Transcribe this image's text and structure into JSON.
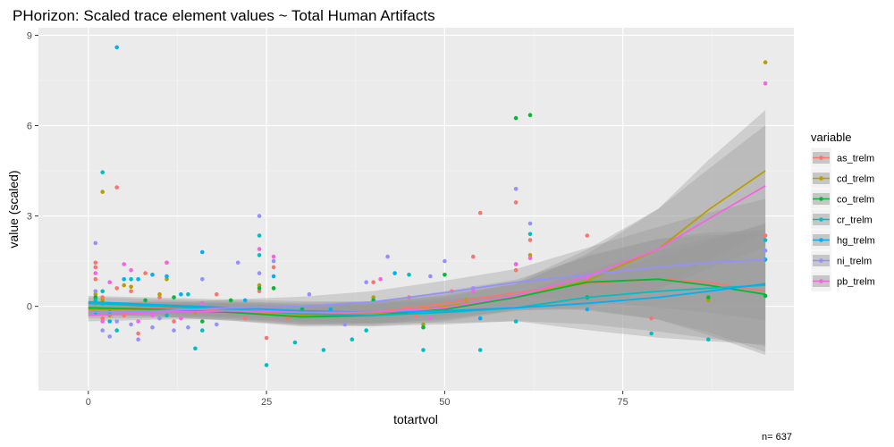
{
  "chart_data": {
    "type": "scatter",
    "title": "PHorizon: Scaled trace element values ~ Total Human Artifacts",
    "xlabel": "totartvol",
    "ylabel": "value (scaled)",
    "xlim": [
      -7,
      99
    ],
    "ylim": [
      -2.8,
      9.25
    ],
    "x_ticks": [
      0,
      25,
      50,
      75
    ],
    "y_ticks": [
      0,
      3,
      6,
      9
    ],
    "grid": true,
    "legend_title": "variable",
    "legend_position": "right",
    "note": "n= 637",
    "series": [
      {
        "name": "as_trelm",
        "color": "#F8766D",
        "points": [
          [
            1,
            1.45
          ],
          [
            1,
            1.3
          ],
          [
            1,
            0.9
          ],
          [
            1,
            0.2
          ],
          [
            2,
            0.3
          ],
          [
            2,
            -0.4
          ],
          [
            3,
            -0.2
          ],
          [
            4,
            3.95
          ],
          [
            4,
            0.6
          ],
          [
            5,
            -0.3
          ],
          [
            6,
            0.5
          ],
          [
            7,
            -0.9
          ],
          [
            8,
            1.1
          ],
          [
            10,
            0.3
          ],
          [
            11,
            1.45
          ],
          [
            12,
            -0.5
          ],
          [
            15,
            -0.2
          ],
          [
            18,
            0.4
          ],
          [
            22,
            -0.4
          ],
          [
            24,
            0.5
          ],
          [
            25,
            -1.05
          ],
          [
            26,
            1.3
          ],
          [
            28,
            -0.4
          ],
          [
            35,
            -0.2
          ],
          [
            40,
            0.8
          ],
          [
            45,
            0.3
          ],
          [
            46,
            -0.3
          ],
          [
            51,
            0.5
          ],
          [
            54,
            1.65
          ],
          [
            55,
            3.1
          ],
          [
            60,
            3.45
          ],
          [
            60,
            1.2
          ],
          [
            62,
            2.2
          ],
          [
            70,
            2.35
          ],
          [
            79,
            -0.4
          ],
          [
            95,
            2.35
          ]
        ],
        "curve": [
          [
            0,
            -0.1
          ],
          [
            10,
            -0.05
          ],
          [
            20,
            -0.15
          ],
          [
            30,
            -0.3
          ],
          [
            40,
            -0.2
          ],
          [
            50,
            0.1
          ],
          [
            60,
            0.45
          ],
          [
            70,
            0.75
          ],
          [
            80,
            0.9
          ],
          [
            87,
            0.8
          ],
          [
            95,
            0.5
          ]
        ]
      },
      {
        "name": "cd_trelm",
        "color": "#B79F00",
        "points": [
          [
            1,
            0.4
          ],
          [
            1,
            0.1
          ],
          [
            2,
            3.8
          ],
          [
            2,
            0.2
          ],
          [
            3,
            -0.3
          ],
          [
            5,
            0.7
          ],
          [
            6,
            0.65
          ],
          [
            10,
            0.4
          ],
          [
            11,
            0.9
          ],
          [
            15,
            -0.2
          ],
          [
            24,
            0.7
          ],
          [
            26,
            0.6
          ],
          [
            35,
            -0.3
          ],
          [
            40,
            0.3
          ],
          [
            47,
            -0.6
          ],
          [
            53,
            0.2
          ],
          [
            60,
            1.4
          ],
          [
            62,
            1.7
          ],
          [
            70,
            0.8
          ],
          [
            87,
            0.2
          ],
          [
            95,
            8.1
          ]
        ],
        "curve": [
          [
            0,
            -0.1
          ],
          [
            10,
            -0.1
          ],
          [
            20,
            -0.2
          ],
          [
            30,
            -0.3
          ],
          [
            40,
            -0.25
          ],
          [
            50,
            0.0
          ],
          [
            60,
            0.3
          ],
          [
            70,
            0.85
          ],
          [
            80,
            1.9
          ],
          [
            87,
            3.2
          ],
          [
            95,
            4.5
          ]
        ]
      },
      {
        "name": "co_trelm",
        "color": "#00BA38",
        "points": [
          [
            1,
            0.3
          ],
          [
            2,
            0.1
          ],
          [
            3,
            -0.2
          ],
          [
            8,
            0.2
          ],
          [
            12,
            0.3
          ],
          [
            16,
            -0.5
          ],
          [
            20,
            0.2
          ],
          [
            24,
            0.6
          ],
          [
            26,
            0.6
          ],
          [
            30,
            -0.1
          ],
          [
            40,
            0.2
          ],
          [
            47,
            -0.7
          ],
          [
            50,
            1.05
          ],
          [
            60,
            6.25
          ],
          [
            62,
            6.35
          ],
          [
            70,
            0.3
          ],
          [
            87,
            0.3
          ],
          [
            95,
            0.35
          ]
        ],
        "curve": [
          [
            0,
            -0.05
          ],
          [
            10,
            -0.1
          ],
          [
            20,
            -0.2
          ],
          [
            30,
            -0.35
          ],
          [
            40,
            -0.3
          ],
          [
            50,
            -0.1
          ],
          [
            60,
            0.3
          ],
          [
            70,
            0.8
          ],
          [
            80,
            0.9
          ],
          [
            87,
            0.7
          ],
          [
            95,
            0.4
          ]
        ]
      },
      {
        "name": "cr_trelm",
        "color": "#00BFC4",
        "points": [
          [
            1,
            0.2
          ],
          [
            2,
            4.45
          ],
          [
            2,
            0.5
          ],
          [
            3,
            -0.2
          ],
          [
            4,
            -0.8
          ],
          [
            6,
            0.9
          ],
          [
            11,
            -0.3
          ],
          [
            14,
            0.4
          ],
          [
            15,
            -1.4
          ],
          [
            16,
            -0.8
          ],
          [
            24,
            2.35
          ],
          [
            24,
            1.7
          ],
          [
            25,
            -1.95
          ],
          [
            29,
            -1.2
          ],
          [
            33,
            -1.45
          ],
          [
            37,
            -1.1
          ],
          [
            39,
            -0.8
          ],
          [
            45,
            1.05
          ],
          [
            47,
            -1.45
          ],
          [
            55,
            -1.45
          ],
          [
            60,
            -0.5
          ],
          [
            62,
            2.4
          ],
          [
            79,
            -0.9
          ],
          [
            87,
            -1.1
          ],
          [
            95,
            2.2
          ]
        ],
        "curve": [
          [
            0,
            0.1
          ],
          [
            10,
            0.0
          ],
          [
            20,
            -0.1
          ],
          [
            30,
            -0.25
          ],
          [
            40,
            -0.3
          ],
          [
            50,
            -0.2
          ],
          [
            60,
            -0.05
          ],
          [
            70,
            0.3
          ],
          [
            80,
            0.5
          ],
          [
            87,
            0.6
          ],
          [
            95,
            0.7
          ]
        ]
      },
      {
        "name": "hg_trelm",
        "color": "#00B0F6",
        "points": [
          [
            1,
            -0.2
          ],
          [
            3,
            -0.5
          ],
          [
            4,
            8.6
          ],
          [
            5,
            0.9
          ],
          [
            7,
            0.9
          ],
          [
            9,
            1.05
          ],
          [
            11,
            1.0
          ],
          [
            13,
            0.4
          ],
          [
            16,
            1.8
          ],
          [
            22,
            0.2
          ],
          [
            26,
            1.0
          ],
          [
            34,
            -0.1
          ],
          [
            43,
            1.1
          ],
          [
            55,
            -0.4
          ],
          [
            70,
            -0.1
          ],
          [
            95,
            1.55
          ]
        ],
        "curve": [
          [
            0,
            0.15
          ],
          [
            10,
            0.05
          ],
          [
            20,
            -0.05
          ],
          [
            30,
            -0.15
          ],
          [
            40,
            -0.2
          ],
          [
            50,
            -0.15
          ],
          [
            60,
            -0.05
          ],
          [
            70,
            0.1
          ],
          [
            80,
            0.3
          ],
          [
            87,
            0.5
          ],
          [
            95,
            0.75
          ]
        ]
      },
      {
        "name": "ni_trelm",
        "color": "#9590FF",
        "points": [
          [
            1,
            2.1
          ],
          [
            1,
            0.5
          ],
          [
            2,
            -0.8
          ],
          [
            3,
            -1.0
          ],
          [
            4,
            -0.5
          ],
          [
            6,
            -0.6
          ],
          [
            7,
            -1.1
          ],
          [
            9,
            -0.7
          ],
          [
            10,
            -0.4
          ],
          [
            12,
            -0.8
          ],
          [
            14,
            -0.7
          ],
          [
            16,
            0.9
          ],
          [
            18,
            -0.6
          ],
          [
            21,
            1.45
          ],
          [
            24,
            3.0
          ],
          [
            24,
            1.1
          ],
          [
            26,
            1.5
          ],
          [
            31,
            0.4
          ],
          [
            36,
            -0.6
          ],
          [
            39,
            0.8
          ],
          [
            42,
            1.65
          ],
          [
            48,
            1.0
          ],
          [
            50,
            1.5
          ],
          [
            54,
            0.6
          ],
          [
            60,
            3.9
          ],
          [
            62,
            2.75
          ],
          [
            70,
            1.0
          ],
          [
            95,
            1.85
          ]
        ],
        "curve": [
          [
            0,
            -0.2
          ],
          [
            10,
            -0.15
          ],
          [
            20,
            -0.05
          ],
          [
            30,
            0.0
          ],
          [
            40,
            0.15
          ],
          [
            50,
            0.45
          ],
          [
            60,
            0.8
          ],
          [
            70,
            1.05
          ],
          [
            80,
            1.3
          ],
          [
            87,
            1.45
          ],
          [
            95,
            1.55
          ]
        ]
      },
      {
        "name": "pb_trelm",
        "color": "#F564E3",
        "points": [
          [
            1,
            1.1
          ],
          [
            1,
            -0.1
          ],
          [
            2,
            -0.5
          ],
          [
            3,
            0.8
          ],
          [
            5,
            1.4
          ],
          [
            6,
            1.2
          ],
          [
            7,
            -0.5
          ],
          [
            9,
            -0.3
          ],
          [
            11,
            1.45
          ],
          [
            13,
            -0.4
          ],
          [
            16,
            0.1
          ],
          [
            24,
            1.9
          ],
          [
            25,
            -0.2
          ],
          [
            26,
            1.65
          ],
          [
            33,
            -0.2
          ],
          [
            41,
            0.9
          ],
          [
            48,
            -0.4
          ],
          [
            54,
            0.5
          ],
          [
            60,
            1.4
          ],
          [
            62,
            1.6
          ],
          [
            70,
            0.9
          ],
          [
            95,
            7.4
          ]
        ],
        "curve": [
          [
            0,
            -0.3
          ],
          [
            10,
            -0.2
          ],
          [
            20,
            -0.15
          ],
          [
            30,
            -0.2
          ],
          [
            40,
            -0.2
          ],
          [
            50,
            -0.05
          ],
          [
            60,
            0.35
          ],
          [
            70,
            1.0
          ],
          [
            80,
            1.9
          ],
          [
            87,
            2.9
          ],
          [
            95,
            4.0
          ]
        ]
      }
    ]
  }
}
